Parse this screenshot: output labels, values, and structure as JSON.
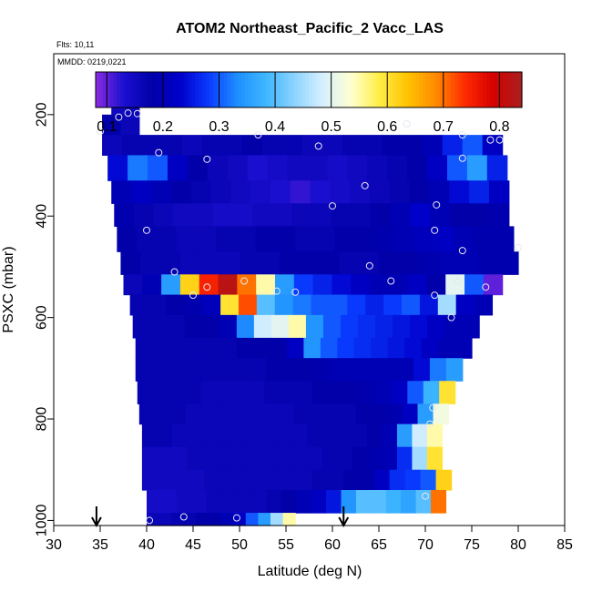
{
  "chart_data": {
    "type": "heatmap",
    "title": "ATOM2 Northeast_Pacific_2 Vacc_LAS",
    "subtitle_flights": "Flts: 10,11",
    "subtitle_dates": "MMDD: 0219,0221",
    "xlabel": "Latitude (deg N)",
    "ylabel": "PSXC (mbar)",
    "xlim": [
      30,
      85
    ],
    "ylim": [
      1010,
      80
    ],
    "x_ticks": [
      "30",
      "35",
      "40",
      "45",
      "50",
      "55",
      "60",
      "65",
      "70",
      "75",
      "80",
      "85"
    ],
    "y_ticks": [
      "200",
      "400",
      "600",
      "800",
      "1000"
    ],
    "colorbar": {
      "range": [
        0.08,
        0.84
      ],
      "tick_labels": [
        "0.1",
        "0.2",
        "0.3",
        "0.4",
        "0.5",
        "0.6",
        "0.7",
        "0.8"
      ],
      "colors": [
        "#8a2be2",
        "#1a0fcf",
        "#0000a8",
        "#0000cc",
        "#0a3cff",
        "#1e90ff",
        "#3fb6ff",
        "#8cd3ff",
        "#d7f0ff",
        "#ffffd0",
        "#ffee44",
        "#ffc200",
        "#ff8800",
        "#ff2a00",
        "#d40000",
        "#a82020"
      ]
    },
    "rows": [
      {
        "p0": 170,
        "p1": 200,
        "lat0": 36.2,
        "lat1": 39.2,
        "v": [
          0.15,
          0.16
        ]
      },
      {
        "p0": 200,
        "p1": 240,
        "lat0": 35.2,
        "lat1": 39.2,
        "v": [
          0.18,
          0.16
        ]
      },
      {
        "p0": 240,
        "p1": 280,
        "lat0": 35.2,
        "lat1": 78.3,
        "v": [
          0.16,
          0.17,
          0.17,
          0.17,
          0.16,
          0.17,
          0.17,
          0.18,
          0.17,
          0.17,
          0.16,
          0.16,
          0.17,
          0.17,
          0.18,
          0.18,
          0.2,
          0.26,
          0.3,
          0.22
        ]
      },
      {
        "p0": 280,
        "p1": 330,
        "lat0": 35.8,
        "lat1": 78.8,
        "v": [
          0.24,
          0.32,
          0.3,
          0.22,
          0.18,
          0.16,
          0.15,
          0.13,
          0.14,
          0.15,
          0.15,
          0.14,
          0.15,
          0.16,
          0.17,
          0.18,
          0.22,
          0.3,
          0.35,
          0.26
        ]
      },
      {
        "p0": 330,
        "p1": 375,
        "lat0": 36.2,
        "lat1": 79.0,
        "v": [
          0.2,
          0.22,
          0.2,
          0.18,
          0.17,
          0.16,
          0.15,
          0.14,
          0.13,
          0.12,
          0.13,
          0.14,
          0.15,
          0.16,
          0.17,
          0.18,
          0.2,
          0.24,
          0.26,
          0.22
        ]
      },
      {
        "p0": 375,
        "p1": 420,
        "lat0": 36.5,
        "lat1": 79.0,
        "v": [
          0.19,
          0.17,
          0.16,
          0.15,
          0.15,
          0.14,
          0.14,
          0.15,
          0.15,
          0.16,
          0.16,
          0.17,
          0.17,
          0.18,
          0.2,
          0.23,
          0.2,
          0.18,
          0.18,
          0.19
        ]
      },
      {
        "p0": 420,
        "p1": 470,
        "lat0": 36.8,
        "lat1": 79.5,
        "v": [
          0.18,
          0.17,
          0.17,
          0.16,
          0.16,
          0.17,
          0.17,
          0.18,
          0.18,
          0.17,
          0.17,
          0.18,
          0.18,
          0.19,
          0.2,
          0.21,
          0.22,
          0.2,
          0.19,
          0.19
        ]
      },
      {
        "p0": 470,
        "p1": 515,
        "lat0": 37.2,
        "lat1": 80.0,
        "v": [
          0.18,
          0.17,
          0.17,
          0.16,
          0.16,
          0.16,
          0.17,
          0.17,
          0.18,
          0.18,
          0.18,
          0.17,
          0.17,
          0.18,
          0.18,
          0.19,
          0.2,
          0.2,
          0.19,
          0.19
        ]
      },
      {
        "p0": 515,
        "p1": 555,
        "lat0": 37.5,
        "lat1": 78.3,
        "v": [
          0.16,
          0.2,
          0.35,
          0.62,
          0.75,
          0.82,
          0.7,
          0.55,
          0.35,
          0.28,
          0.26,
          0.24,
          0.22,
          0.2,
          0.2,
          0.22,
          0.18,
          0.5,
          0.3,
          0.1
        ]
      },
      {
        "p0": 555,
        "p1": 595,
        "lat0": 38.2,
        "lat1": 77.2,
        "v": [
          0.17,
          0.17,
          0.18,
          0.19,
          0.21,
          0.6,
          0.72,
          0.4,
          0.34,
          0.32,
          0.3,
          0.3,
          0.28,
          0.26,
          0.28,
          0.3,
          0.25,
          0.45,
          0.22,
          0.2
        ]
      },
      {
        "p0": 595,
        "p1": 640,
        "lat0": 38.5,
        "lat1": 75.8,
        "v": [
          0.17,
          0.17,
          0.17,
          0.18,
          0.18,
          0.2,
          0.33,
          0.48,
          0.5,
          0.55,
          0.34,
          0.3,
          0.28,
          0.27,
          0.26,
          0.25,
          0.24,
          0.22,
          0.2,
          0.2
        ]
      },
      {
        "p0": 640,
        "p1": 680,
        "lat0": 38.8,
        "lat1": 75.0,
        "v": [
          0.17,
          0.17,
          0.17,
          0.17,
          0.17,
          0.17,
          0.18,
          0.18,
          0.18,
          0.22,
          0.34,
          0.3,
          0.28,
          0.27,
          0.26,
          0.25,
          0.24,
          0.22,
          0.2,
          0.2
        ]
      },
      {
        "p0": 680,
        "p1": 725,
        "lat0": 38.8,
        "lat1": 74.0,
        "v": [
          0.17,
          0.17,
          0.17,
          0.17,
          0.17,
          0.17,
          0.17,
          0.17,
          0.18,
          0.18,
          0.18,
          0.19,
          0.2,
          0.2,
          0.2,
          0.2,
          0.2,
          0.24,
          0.32,
          0.35
        ]
      },
      {
        "p0": 725,
        "p1": 770,
        "lat0": 39.0,
        "lat1": 73.2,
        "v": [
          0.17,
          0.17,
          0.17,
          0.17,
          0.16,
          0.16,
          0.16,
          0.16,
          0.17,
          0.17,
          0.17,
          0.18,
          0.18,
          0.18,
          0.19,
          0.2,
          0.22,
          0.3,
          0.38,
          0.6
        ]
      },
      {
        "p0": 770,
        "p1": 810,
        "lat0": 39.2,
        "lat1": 72.5,
        "v": [
          0.17,
          0.17,
          0.17,
          0.16,
          0.16,
          0.16,
          0.16,
          0.16,
          0.16,
          0.16,
          0.17,
          0.17,
          0.17,
          0.17,
          0.18,
          0.18,
          0.19,
          0.22,
          0.35,
          0.52
        ]
      },
      {
        "p0": 810,
        "p1": 855,
        "lat0": 39.5,
        "lat1": 71.8,
        "v": [
          0.17,
          0.17,
          0.16,
          0.16,
          0.16,
          0.16,
          0.16,
          0.16,
          0.16,
          0.16,
          0.16,
          0.17,
          0.17,
          0.17,
          0.17,
          0.18,
          0.2,
          0.35,
          0.48,
          0.55
        ]
      },
      {
        "p0": 855,
        "p1": 900,
        "lat0": 39.5,
        "lat1": 71.8,
        "v": [
          0.15,
          0.15,
          0.15,
          0.16,
          0.16,
          0.16,
          0.16,
          0.16,
          0.16,
          0.16,
          0.16,
          0.16,
          0.17,
          0.17,
          0.18,
          0.19,
          0.2,
          0.27,
          0.45,
          0.6
        ]
      },
      {
        "p0": 900,
        "p1": 940,
        "lat0": 39.5,
        "lat1": 72.8,
        "v": [
          0.15,
          0.15,
          0.15,
          0.15,
          0.16,
          0.16,
          0.16,
          0.16,
          0.16,
          0.16,
          0.16,
          0.17,
          0.17,
          0.18,
          0.18,
          0.22,
          0.27,
          0.28,
          0.3,
          0.62
        ]
      },
      {
        "p0": 940,
        "p1": 985,
        "lat0": 40.0,
        "lat1": 72.2,
        "v": [
          0.14,
          0.14,
          0.15,
          0.15,
          0.16,
          0.16,
          0.16,
          0.16,
          0.17,
          0.18,
          0.2,
          0.22,
          0.25,
          0.34,
          0.4,
          0.4,
          0.38,
          0.36,
          0.4,
          0.7
        ]
      },
      {
        "p0": 985,
        "p1": 1010,
        "lat0": 40.0,
        "lat1": 56.0,
        "v": [
          0.16,
          0.16,
          0.17,
          0.17,
          0.18,
          0.18,
          0.2,
          0.22,
          0.3,
          0.35,
          0.45,
          0.55
        ]
      }
    ],
    "sample_points": [
      [
        37.0,
        205
      ],
      [
        38.0,
        197
      ],
      [
        39.0,
        198
      ],
      [
        35.0,
        233
      ],
      [
        68.0,
        218
      ],
      [
        52.0,
        240
      ],
      [
        74.0,
        240
      ],
      [
        77.0,
        250
      ],
      [
        78.0,
        250
      ],
      [
        41.3,
        275
      ],
      [
        46.5,
        288
      ],
      [
        58.5,
        262
      ],
      [
        74.0,
        286
      ],
      [
        63.5,
        340
      ],
      [
        60.0,
        380
      ],
      [
        71.2,
        378
      ],
      [
        40.0,
        428
      ],
      [
        71.0,
        428
      ],
      [
        74.0,
        468
      ],
      [
        80.0,
        462
      ],
      [
        43.0,
        510
      ],
      [
        64.0,
        498
      ],
      [
        46.5,
        540
      ],
      [
        45.0,
        556
      ],
      [
        50.5,
        528
      ],
      [
        54.0,
        548
      ],
      [
        56.0,
        550
      ],
      [
        66.3,
        528
      ],
      [
        73.5,
        528
      ],
      [
        76.5,
        540
      ],
      [
        71.0,
        556
      ],
      [
        72.8,
        600
      ],
      [
        70.8,
        778
      ],
      [
        70.5,
        810
      ],
      [
        70.0,
        952
      ],
      [
        40.3,
        1000
      ],
      [
        44.0,
        993
      ],
      [
        49.7,
        995
      ]
    ],
    "markers": [
      {
        "lat": 34.6,
        "label": "arrow"
      },
      {
        "lat": 61.2,
        "label": "arrow"
      }
    ]
  }
}
